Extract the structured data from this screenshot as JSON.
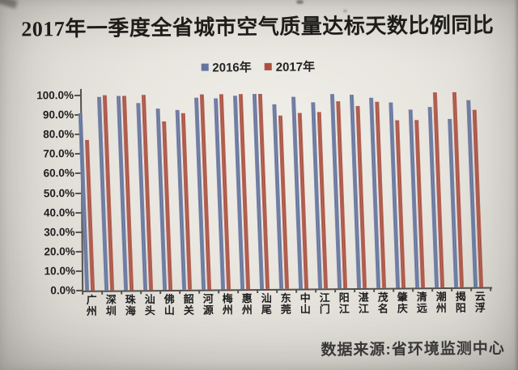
{
  "page": {
    "title": "2017年一季度全省城市空气质量达标天数比例同比",
    "source_note": "数据来源:省环境监测中心"
  },
  "chart_data": {
    "type": "bar",
    "title": "2017年一季度全省城市空气质量达标天数比例同比",
    "source": "数据来源:省环境监测中心",
    "categories": [
      "广州",
      "深圳",
      "珠海",
      "汕头",
      "佛山",
      "韶关",
      "河源",
      "梅州",
      "惠州",
      "汕尾",
      "东莞",
      "中山",
      "江门",
      "阳江",
      "湛江",
      "茂名",
      "肇庆",
      "清远",
      "潮州",
      "揭阳",
      "云浮"
    ],
    "series": [
      {
        "name": "2016年",
        "color": "#64749f",
        "values": [
          91,
          99,
          99.5,
          96,
          93,
          92,
          98.5,
          98,
          99,
          100,
          94.5,
          98.5,
          95.5,
          99.5,
          99,
          97.5,
          95,
          91.5,
          92.5,
          86.5,
          96
        ]
      },
      {
        "name": "2017年",
        "color": "#ad4f3e",
        "values": [
          77,
          100,
          99.5,
          100,
          86.5,
          90.5,
          100,
          100,
          100,
          100,
          89,
          90,
          90.5,
          96,
          93.5,
          95.5,
          86,
          86,
          100,
          100,
          91
        ]
      }
    ],
    "ylim": [
      0,
      100
    ],
    "y_tick_step": 10,
    "y_tick_labels": [
      "0.0%",
      "10.0%",
      "20.0%",
      "30.0%",
      "40.0%",
      "50.0%",
      "60.0%",
      "70.0%",
      "80.0%",
      "90.0%",
      "100.0%"
    ],
    "grid": false,
    "legend_position": "top",
    "xlabel": "",
    "ylabel": ""
  }
}
